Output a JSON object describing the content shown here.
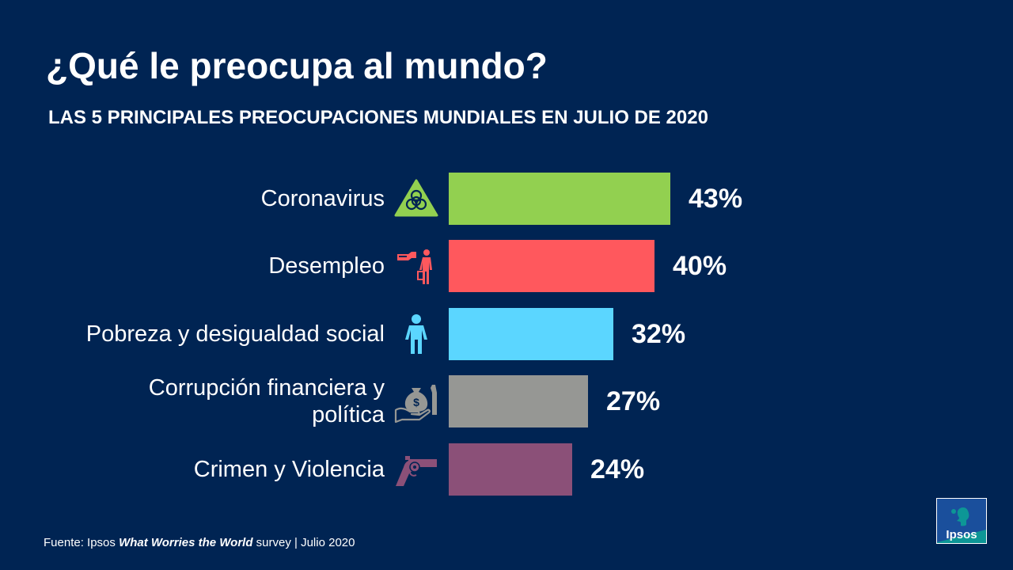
{
  "title": "¿Qué le preocupa al mundo?",
  "subtitle": "LAS 5 PRINCIPALES PREOCUPACIONES MUNDIALES EN JULIO DE 2020",
  "footer": {
    "prefix": "Fuente: Ipsos ",
    "emphasis": "What Worries the World",
    "suffix": " survey | Julio 2020"
  },
  "logo_text": "Ipsos",
  "chart_data": {
    "type": "bar",
    "orientation": "horizontal",
    "title": "¿Qué le preocupa al mundo?",
    "subtitle": "LAS 5 PRINCIPALES PREOCUPACIONES MUNDIALES EN JULIO DE 2020",
    "categories": [
      "Coronavirus",
      "Desempleo",
      "Pobreza y desigualdad social",
      "Corrupción financiera y\npolítica",
      "Crimen y Violencia"
    ],
    "values": [
      43,
      40,
      32,
      27,
      24
    ],
    "value_labels": [
      "43%",
      "40%",
      "32%",
      "27%",
      "24%"
    ],
    "colors": [
      "#92d050",
      "#ff585d",
      "#5bd6ff",
      "#969794",
      "#8b5078"
    ],
    "icons": [
      "biohazard-icon",
      "pointing-hand-unemployed-icon",
      "person-icon",
      "money-bag-bribe-icon",
      "revolver-icon"
    ],
    "icon_colors": [
      "#92d050",
      "#ff585d",
      "#5bd6ff",
      "#969794",
      "#8b5078"
    ],
    "xlim": [
      0,
      43
    ],
    "grid": false,
    "legend": "none"
  }
}
